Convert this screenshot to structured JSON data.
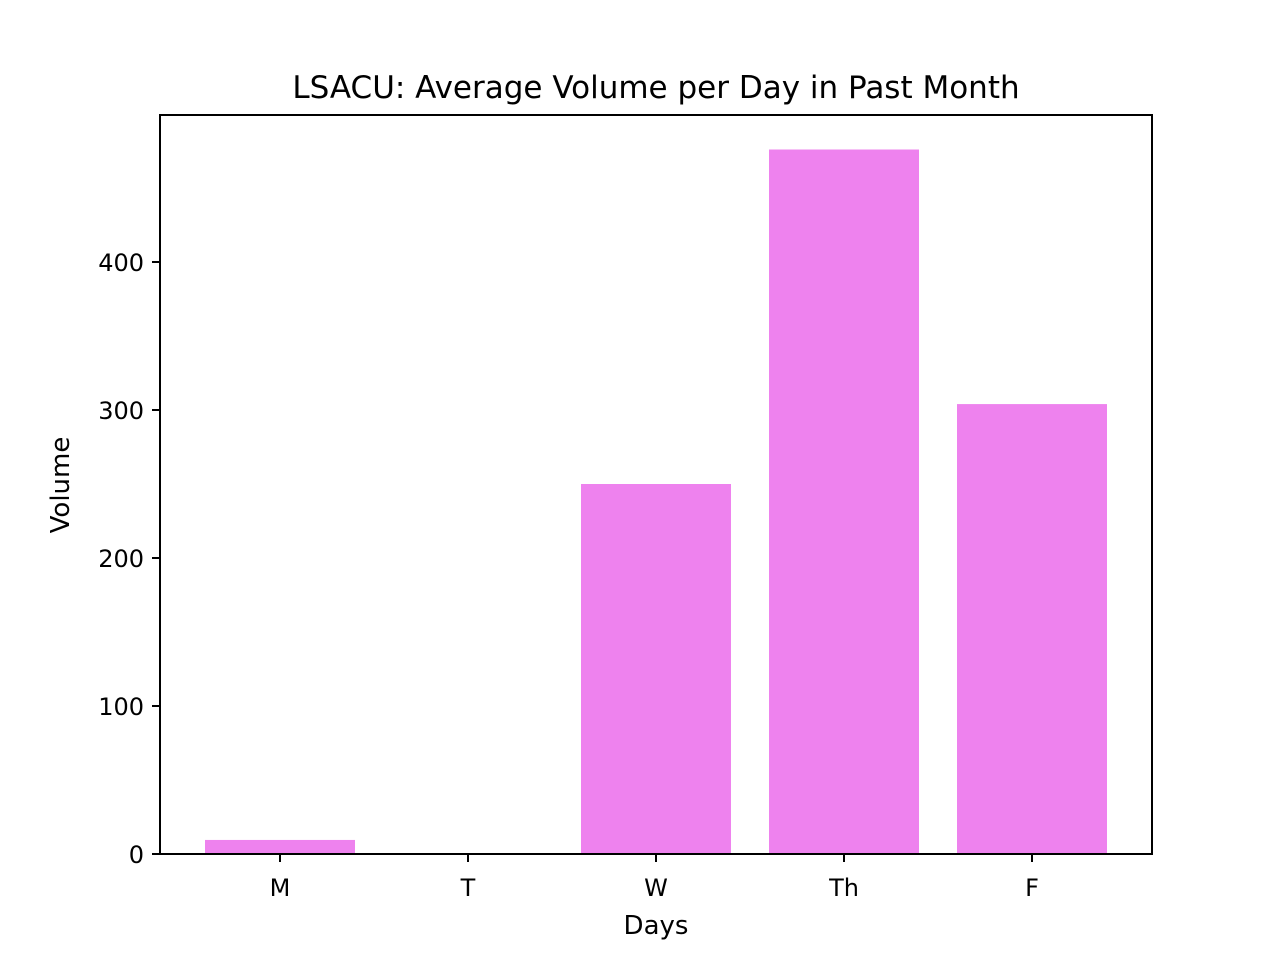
{
  "chart_data": {
    "type": "bar",
    "title": "LSACU: Average Volume per Day in Past Month",
    "xlabel": "Days",
    "ylabel": "Volume",
    "categories": [
      "M",
      "T",
      "W",
      "Th",
      "F"
    ],
    "values": [
      9.5,
      0,
      250,
      476,
      304
    ],
    "ylim": [
      0,
      500
    ],
    "yticks": [
      0,
      100,
      200,
      300,
      400
    ],
    "grid": false,
    "legend": "none",
    "bar_color": "#ee82ee"
  }
}
